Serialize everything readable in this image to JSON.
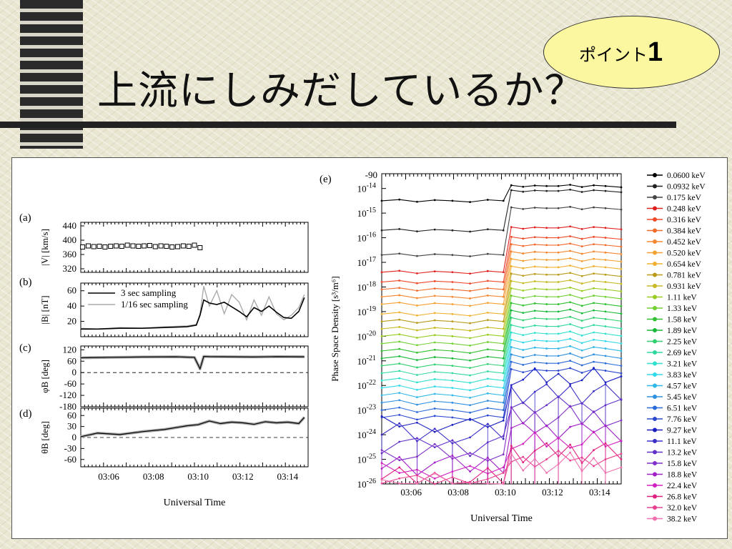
{
  "slide": {
    "title": "上流にしみだしているか？",
    "badge_text": "ポイント",
    "badge_number": "1"
  },
  "chart_data": [
    {
      "panel": "(a)",
      "type": "scatter",
      "ylabel": "|V| [km/s]",
      "yticks": [
        "440",
        "400",
        "360",
        "320"
      ],
      "ylim": [
        310,
        450
      ],
      "marker": "open-square",
      "x": [
        "03:04:50",
        "03:05:05",
        "03:05:20",
        "03:05:35",
        "03:05:50",
        "03:06:05",
        "03:06:20",
        "03:06:35",
        "03:06:50",
        "03:07:05",
        "03:07:20",
        "03:07:35",
        "03:07:50",
        "03:08:05",
        "03:08:20",
        "03:08:35",
        "03:08:50",
        "03:09:05",
        "03:09:20",
        "03:09:35",
        "03:09:50",
        "03:10:05"
      ],
      "values": [
        381,
        384,
        382,
        383,
        381,
        383,
        384,
        383,
        386,
        384,
        383,
        384,
        385,
        382,
        384,
        383,
        381,
        382,
        384,
        383,
        386,
        379
      ]
    },
    {
      "panel": "(b)",
      "type": "line",
      "ylabel": "|B| [nT]",
      "yticks": [
        "60",
        "40",
        "20"
      ],
      "ylim": [
        0,
        70
      ],
      "series": [
        {
          "name": "3 sec sampling",
          "color": "#000000",
          "x": [
            "03:04:45",
            "03:05:30",
            "03:06:30",
            "03:07:30",
            "03:08:30",
            "03:09:30",
            "03:09:55",
            "03:10:05",
            "03:10:15",
            "03:10:30",
            "03:10:50",
            "03:11:10",
            "03:11:30",
            "03:11:50",
            "03:12:10",
            "03:12:30",
            "03:12:50",
            "03:13:10",
            "03:13:30",
            "03:13:50",
            "03:14:10",
            "03:14:30",
            "03:14:45"
          ],
          "values": [
            10,
            10,
            11,
            11,
            12,
            13,
            15,
            28,
            48,
            44,
            42,
            45,
            39,
            33,
            26,
            38,
            33,
            40,
            32,
            25,
            24,
            33,
            51
          ]
        },
        {
          "name": "1/16 sec sampling",
          "color": "#aaaaaa",
          "x": [
            "03:04:45",
            "03:05:30",
            "03:06:30",
            "03:07:30",
            "03:08:30",
            "03:09:30",
            "03:09:55",
            "03:10:05",
            "03:10:15",
            "03:10:30",
            "03:10:50",
            "03:11:10",
            "03:11:30",
            "03:11:50",
            "03:12:10",
            "03:12:30",
            "03:12:50",
            "03:13:10",
            "03:13:30",
            "03:13:50",
            "03:14:10",
            "03:14:30",
            "03:14:45"
          ],
          "values": [
            11,
            10,
            12,
            11,
            13,
            14,
            16,
            30,
            66,
            40,
            60,
            30,
            55,
            45,
            22,
            48,
            28,
            52,
            30,
            22,
            28,
            38,
            55
          ]
        }
      ]
    },
    {
      "panel": "(c)",
      "type": "line",
      "ylabel": "φB [deg]",
      "yticks": [
        "120",
        "60",
        "0",
        "-60",
        "-120",
        "-180"
      ],
      "ylim": [
        -180,
        140
      ],
      "x": [
        "03:04:45",
        "03:06:00",
        "03:07:30",
        "03:09:00",
        "03:09:50",
        "03:10:05",
        "03:10:15",
        "03:10:30",
        "03:11:30",
        "03:12:30",
        "03:13:30",
        "03:14:45"
      ],
      "values": [
        78,
        80,
        82,
        83,
        80,
        20,
        85,
        84,
        83,
        82,
        84,
        83
      ]
    },
    {
      "panel": "(d)",
      "type": "line",
      "ylabel": "θB [deg]",
      "yticks": [
        "60",
        "30",
        "0",
        "-30",
        "-60"
      ],
      "ylim": [
        -80,
        80
      ],
      "x": [
        "03:04:45",
        "03:05:30",
        "03:06:30",
        "03:07:30",
        "03:08:30",
        "03:09:30",
        "03:10:00",
        "03:10:30",
        "03:11:00",
        "03:11:30",
        "03:12:00",
        "03:12:30",
        "03:13:00",
        "03:13:30",
        "03:14:00",
        "03:14:30",
        "03:14:45"
      ],
      "values": [
        2,
        12,
        8,
        16,
        22,
        32,
        35,
        45,
        38,
        42,
        40,
        36,
        43,
        40,
        42,
        38,
        55
      ]
    },
    {
      "panel_x": {
        "xticks": [
          "03:06",
          "03:08",
          "03:10",
          "03:12",
          "03:14"
        ],
        "xlabel": "Universal Time"
      }
    },
    {
      "panel": "(e)",
      "type": "line",
      "yscale": "log",
      "ylabel": "Phase Space Density [s³/m⁶]",
      "xlabel": "Universal Time",
      "xticks": [
        "03:06",
        "03:08",
        "03:10",
        "03:12",
        "03:14"
      ],
      "top_label": "-90",
      "ylim_log10": [
        -26,
        -13.4
      ],
      "ytick_exponents": [
        "-14",
        "-15",
        "-16",
        "-17",
        "-18",
        "-19",
        "-20",
        "-21",
        "-22",
        "-23",
        "-24",
        "-25",
        "-26"
      ],
      "pre_step_log10": [
        -14.5,
        -15.7,
        -16.7,
        -17.4,
        -17.8,
        -18.1,
        -18.4,
        -18.7,
        -19.1,
        -19.4,
        -19.7,
        -20.0,
        -20.3,
        -20.6,
        -20.9,
        -21.2,
        -21.5,
        -21.8,
        -22.1,
        -22.4,
        -22.7,
        -23.0,
        -23.3,
        -23.6,
        -24.0,
        -24.4,
        -24.8,
        -25.2,
        -25.5,
        -25.8,
        -25.9,
        -26.0
      ],
      "post_step_log10": [
        -13.9,
        -14.1,
        -14.8,
        -15.6,
        -16.0,
        -16.3,
        -16.6,
        -16.9,
        -17.2,
        -17.5,
        -17.8,
        -18.1,
        -18.4,
        -18.7,
        -19.0,
        -19.3,
        -19.6,
        -19.9,
        -20.2,
        -20.5,
        -20.8,
        -21.1,
        -21.4,
        -21.7,
        -22.3,
        -22.8,
        -23.3,
        -23.8,
        -24.3,
        -24.7,
        -25.0,
        -25.2
      ],
      "series": [
        {
          "name": "0.0600 keV",
          "color": "#000000"
        },
        {
          "name": "0.0932 keV",
          "color": "#222222"
        },
        {
          "name": "0.175 keV",
          "color": "#444444"
        },
        {
          "name": "0.248 keV",
          "color": "#e02020"
        },
        {
          "name": "0.316 keV",
          "color": "#ee4a2a"
        },
        {
          "name": "0.384 keV",
          "color": "#f26a2a"
        },
        {
          "name": "0.452 keV",
          "color": "#f5862e"
        },
        {
          "name": "0.520 keV",
          "color": "#f5a030"
        },
        {
          "name": "0.654 keV",
          "color": "#f0b030"
        },
        {
          "name": "0.781 keV",
          "color": "#b89a18"
        },
        {
          "name": "0.931 keV",
          "color": "#c8b820"
        },
        {
          "name": "1.11 keV",
          "color": "#98cc20"
        },
        {
          "name": "1.33 keV",
          "color": "#70d030"
        },
        {
          "name": "1.58 keV",
          "color": "#30c030"
        },
        {
          "name": "1.89 keV",
          "color": "#18b838"
        },
        {
          "name": "2.25 keV",
          "color": "#30d070"
        },
        {
          "name": "2.69 keV",
          "color": "#30d8a0"
        },
        {
          "name": "3.21 keV",
          "color": "#30e0d0"
        },
        {
          "name": "3.83 keV",
          "color": "#30d8e8"
        },
        {
          "name": "4.57 keV",
          "color": "#30b8e8"
        },
        {
          "name": "5.45 keV",
          "color": "#3090e0"
        },
        {
          "name": "6.51 keV",
          "color": "#2a6ad8"
        },
        {
          "name": "7.76 keV",
          "color": "#2a48d0"
        },
        {
          "name": "9.27 keV",
          "color": "#1a20c0"
        },
        {
          "name": "11.1 keV",
          "color": "#3a30c8"
        },
        {
          "name": "13.2 keV",
          "color": "#6030c8"
        },
        {
          "name": "15.8 keV",
          "color": "#8030c8"
        },
        {
          "name": "18.8 keV",
          "color": "#a020c8"
        },
        {
          "name": "22.4 keV",
          "color": "#d020c0"
        },
        {
          "name": "26.8 keV",
          "color": "#e02080"
        },
        {
          "name": "32.0 keV",
          "color": "#e84090"
        },
        {
          "name": "38.2 keV",
          "color": "#f070b0"
        }
      ]
    }
  ]
}
